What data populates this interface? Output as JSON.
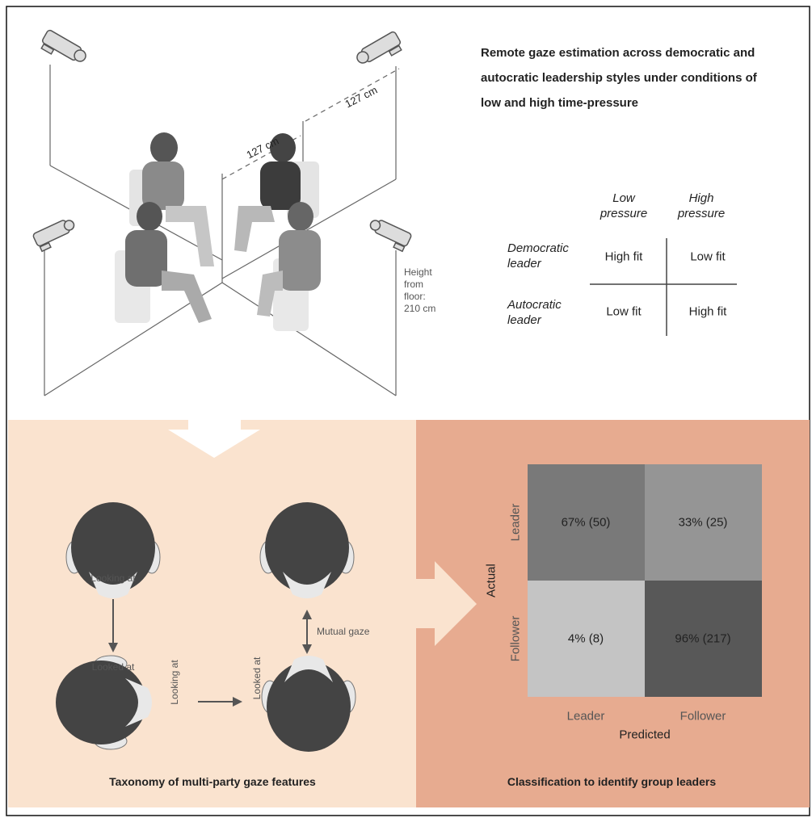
{
  "illustration": {
    "distance_labels": [
      "127 cm",
      "127 cm"
    ],
    "height_label": "Height from floor: 210 cm"
  },
  "title": "Remote gaze estimation across democratic and autocratic leadership styles under conditions of low and high time-pressure",
  "fit_table": {
    "columns": [
      "Low pressure",
      "High pressure"
    ],
    "rows": [
      {
        "label": "Democratic leader",
        "cells": [
          "High fit",
          "Low fit"
        ]
      },
      {
        "label": "Autocratic leader",
        "cells": [
          "Low fit",
          "High fit"
        ]
      }
    ]
  },
  "taxonomy": {
    "looking_at": "Looking at",
    "looked_at": "Looked at",
    "mutual_gaze": "Mutual gaze",
    "looking_at_side": "Looking at",
    "looked_at_side": "Looked at",
    "caption": "Taxonomy of multi-party gaze features"
  },
  "classification": {
    "y_axis_label": "Actual",
    "x_axis_label": "Predicted",
    "row_labels": [
      "Leader",
      "Follower"
    ],
    "column_labels": [
      "Leader",
      "Follower"
    ],
    "cells": [
      [
        "67% (50)",
        "33% (25)"
      ],
      [
        "4% (8)",
        "96% (217)"
      ]
    ],
    "caption": "Classification to identify group leaders"
  }
}
